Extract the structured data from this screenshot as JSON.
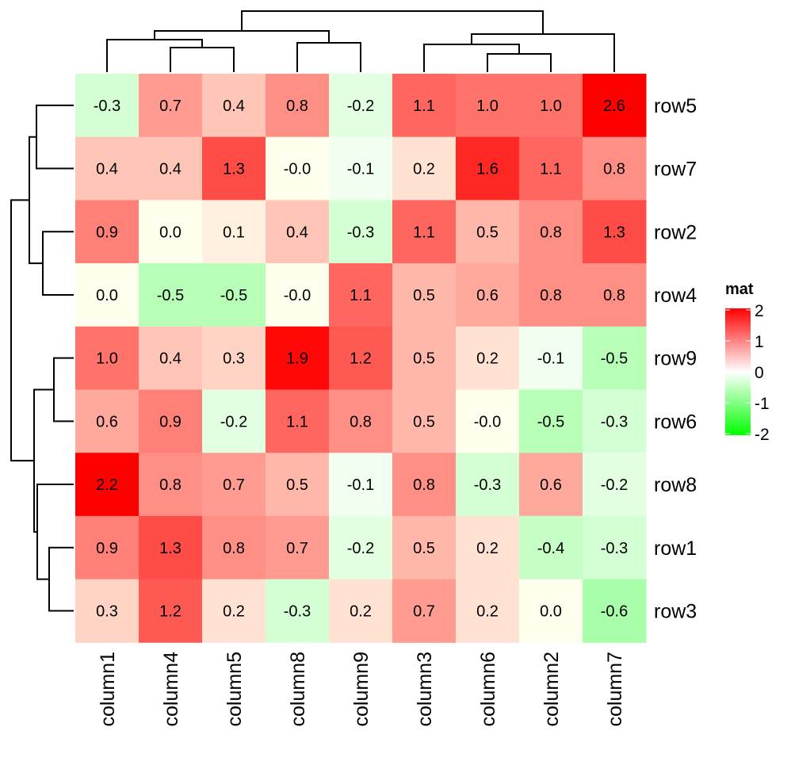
{
  "chart_data": {
    "type": "heatmap",
    "title": "",
    "rows": [
      "row5",
      "row7",
      "row2",
      "row4",
      "row9",
      "row6",
      "row8",
      "row1",
      "row3"
    ],
    "columns": [
      "column1",
      "column4",
      "column5",
      "column8",
      "column9",
      "column3",
      "column6",
      "column2",
      "column7"
    ],
    "values": [
      [
        -0.3,
        0.7,
        0.4,
        0.8,
        -0.2,
        1.1,
        1.0,
        1.0,
        2.6
      ],
      [
        0.4,
        0.4,
        1.3,
        -0.0,
        -0.1,
        0.2,
        1.6,
        1.1,
        0.8
      ],
      [
        0.9,
        0.0,
        0.1,
        0.4,
        -0.3,
        1.1,
        0.5,
        0.8,
        1.3
      ],
      [
        0.0,
        -0.5,
        -0.5,
        -0.0,
        1.1,
        0.5,
        0.6,
        0.8,
        0.8
      ],
      [
        1.0,
        0.4,
        0.3,
        1.9,
        1.2,
        0.5,
        0.2,
        -0.1,
        -0.5
      ],
      [
        0.6,
        0.9,
        -0.2,
        1.1,
        0.8,
        0.5,
        -0.0,
        -0.5,
        -0.3
      ],
      [
        2.2,
        0.8,
        0.7,
        0.5,
        -0.1,
        0.8,
        -0.3,
        0.6,
        -0.2
      ],
      [
        0.9,
        1.3,
        0.8,
        0.7,
        -0.2,
        0.5,
        0.2,
        -0.4,
        -0.3
      ],
      [
        0.3,
        1.2,
        0.2,
        -0.3,
        0.2,
        0.7,
        0.2,
        0.0,
        -0.6
      ]
    ],
    "cell_labels": [
      [
        "-0.3",
        "0.7",
        "0.4",
        "0.8",
        "-0.2",
        "1.1",
        "1.0",
        "1.0",
        "2.6"
      ],
      [
        "0.4",
        "0.4",
        "1.3",
        "-0.0",
        "-0.1",
        "0.2",
        "1.6",
        "1.1",
        "0.8"
      ],
      [
        "0.9",
        "0.0",
        "0.1",
        "0.4",
        "-0.3",
        "1.1",
        "0.5",
        "0.8",
        "1.3"
      ],
      [
        "0.0",
        "-0.5",
        "-0.5",
        "-0.0",
        "1.1",
        "0.5",
        "0.6",
        "0.8",
        "0.8"
      ],
      [
        "1.0",
        "0.4",
        "0.3",
        "1.9",
        "1.2",
        "0.5",
        "0.2",
        "-0.1",
        "-0.5"
      ],
      [
        "0.6",
        "0.9",
        "-0.2",
        "1.1",
        "0.8",
        "0.5",
        "-0.0",
        "-0.5",
        "-0.3"
      ],
      [
        "2.2",
        "0.8",
        "0.7",
        "0.5",
        "-0.1",
        "0.8",
        "-0.3",
        "0.6",
        "-0.2"
      ],
      [
        "0.9",
        "1.3",
        "0.8",
        "0.7",
        "-0.2",
        "0.5",
        "0.2",
        "-0.4",
        "-0.3"
      ],
      [
        "0.3",
        "1.2",
        "0.2",
        "-0.3",
        "0.2",
        "0.7",
        "0.2",
        "0.0",
        "-0.6"
      ]
    ],
    "color_scale": {
      "min": -2,
      "mid": 0,
      "max": 2,
      "low_color": "#00FF00",
      "mid_color": "#FFFFFF",
      "high_color": "#FF0000"
    },
    "legend": {
      "title": "mat",
      "ticks": [
        "2",
        "1",
        "0",
        "-1",
        "-2"
      ],
      "tick_values": [
        2,
        1,
        0,
        -1,
        -2
      ],
      "placement": "right"
    },
    "column_dendrogram": "((column1,(column4,column5)),(column8,column9)),((column3,(column6,column2)),column7)",
    "row_dendrogram": "(((row5,row7),(row2,row4)),((row9,row6),(row8,(row1,row3))))"
  }
}
